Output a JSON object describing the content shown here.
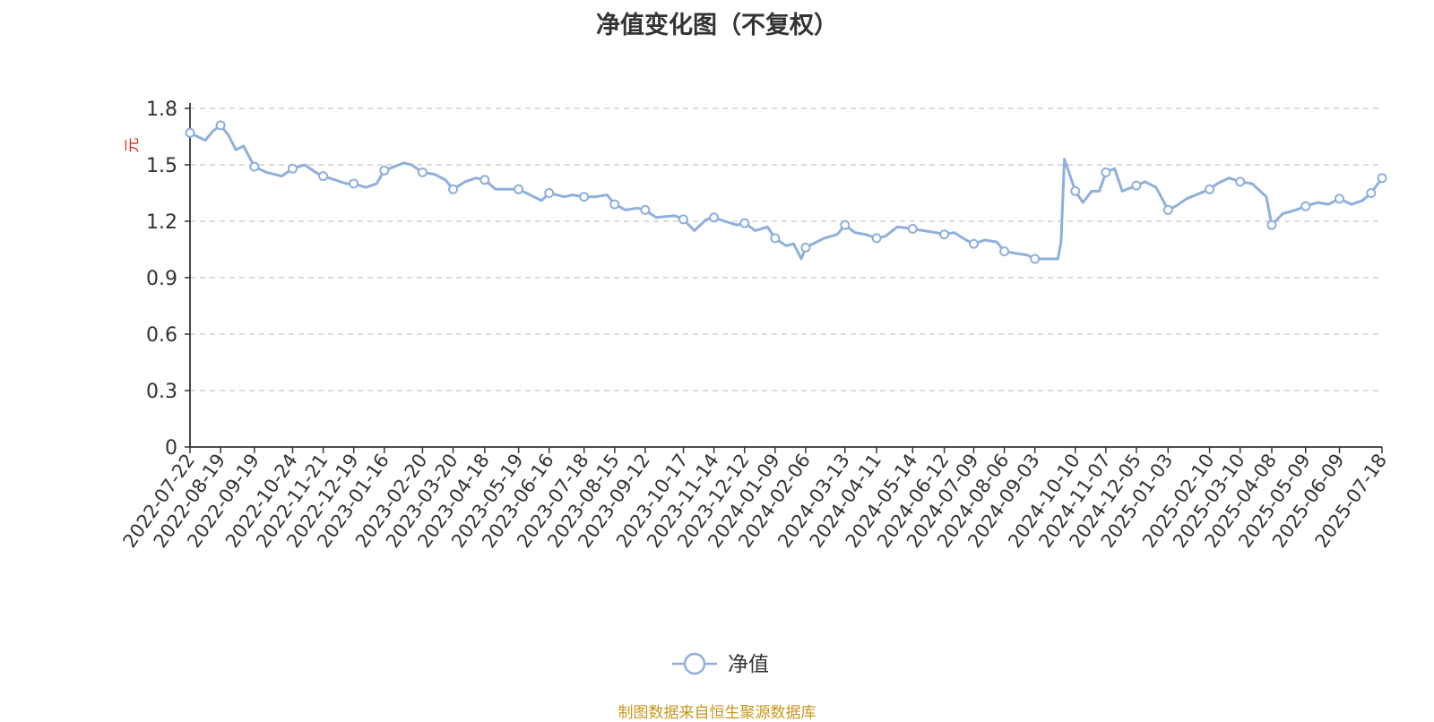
{
  "chart_data": {
    "type": "line",
    "title": "净值变化图（不复权）",
    "ylabel": "元",
    "ylim": [
      0,
      1.8
    ],
    "yticks": [
      "0",
      "0.3",
      "0.6",
      "0.9",
      "1.2",
      "1.5",
      "1.8"
    ],
    "grid": true,
    "legend_position": "bottom-center",
    "colors": {
      "series": "#8fafdc",
      "grid": "#c8c8c8",
      "ylabel": "#e8211c",
      "source": "#c8961e"
    },
    "x_tick_labels": [
      "2022-07-22",
      "2022-08-19",
      "2022-09-19",
      "2022-10-24",
      "2022-11-21",
      "2022-12-19",
      "2023-01-16",
      "2023-02-20",
      "2023-03-20",
      "2023-04-18",
      "2023-05-19",
      "2023-06-16",
      "2023-07-18",
      "2023-08-15",
      "2023-09-12",
      "2023-10-17",
      "2023-11-14",
      "2023-12-12",
      "2024-01-09",
      "2024-02-06",
      "2024-03-13",
      "2024-04-11",
      "2024-05-14",
      "2024-06-12",
      "2024-07-09",
      "2024-08-06",
      "2024-09-03",
      "2024-10-10",
      "2024-11-07",
      "2024-12-05",
      "2025-01-03",
      "2025-02-10",
      "2025-03-10",
      "2025-04-08",
      "2025-05-09",
      "2025-06-09",
      "2025-07-18"
    ],
    "series": [
      {
        "name": "净值",
        "x": [
          "2022-07-22",
          "2022-07-29",
          "2022-08-05",
          "2022-08-12",
          "2022-08-19",
          "2022-08-26",
          "2022-09-02",
          "2022-09-09",
          "2022-09-19",
          "2022-09-30",
          "2022-10-14",
          "2022-10-24",
          "2022-11-04",
          "2022-11-14",
          "2022-11-21",
          "2022-12-02",
          "2022-12-12",
          "2022-12-19",
          "2022-12-30",
          "2023-01-09",
          "2023-01-16",
          "2023-02-03",
          "2023-02-10",
          "2023-02-20",
          "2023-03-03",
          "2023-03-13",
          "2023-03-20",
          "2023-03-31",
          "2023-04-10",
          "2023-04-18",
          "2023-04-28",
          "2023-05-12",
          "2023-05-19",
          "2023-06-02",
          "2023-06-09",
          "2023-06-16",
          "2023-06-30",
          "2023-07-07",
          "2023-07-18",
          "2023-07-28",
          "2023-08-08",
          "2023-08-15",
          "2023-08-25",
          "2023-09-05",
          "2023-09-12",
          "2023-09-22",
          "2023-10-09",
          "2023-10-17",
          "2023-10-27",
          "2023-11-07",
          "2023-11-14",
          "2023-11-24",
          "2023-12-05",
          "2023-12-12",
          "2023-12-22",
          "2024-01-02",
          "2024-01-09",
          "2024-01-19",
          "2024-01-26",
          "2024-02-02",
          "2024-02-06",
          "2024-02-23",
          "2024-03-06",
          "2024-03-13",
          "2024-03-22",
          "2024-04-01",
          "2024-04-11",
          "2024-04-19",
          "2024-04-30",
          "2024-05-14",
          "2024-05-24",
          "2024-06-04",
          "2024-06-12",
          "2024-06-21",
          "2024-07-02",
          "2024-07-09",
          "2024-07-19",
          "2024-07-30",
          "2024-08-06",
          "2024-08-16",
          "2024-08-27",
          "2024-09-03",
          "2024-09-13",
          "2024-09-24",
          "2024-09-27",
          "2024-09-30",
          "2024-10-10",
          "2024-10-17",
          "2024-10-25",
          "2024-11-01",
          "2024-11-07",
          "2024-11-15",
          "2024-11-22",
          "2024-12-05",
          "2024-12-13",
          "2024-12-23",
          "2025-01-03",
          "2025-01-10",
          "2025-01-20",
          "2025-02-10",
          "2025-02-17",
          "2025-02-28",
          "2025-03-10",
          "2025-03-21",
          "2025-04-03",
          "2025-04-08",
          "2025-04-18",
          "2025-04-30",
          "2025-05-09",
          "2025-05-20",
          "2025-05-30",
          "2025-06-09",
          "2025-06-20",
          "2025-06-30",
          "2025-07-08",
          "2025-07-18"
        ],
        "values": [
          1.67,
          1.65,
          1.63,
          1.68,
          1.71,
          1.66,
          1.58,
          1.6,
          1.49,
          1.46,
          1.44,
          1.48,
          1.5,
          1.46,
          1.44,
          1.42,
          1.4,
          1.4,
          1.38,
          1.4,
          1.47,
          1.51,
          1.5,
          1.46,
          1.45,
          1.42,
          1.37,
          1.41,
          1.43,
          1.42,
          1.37,
          1.37,
          1.37,
          1.33,
          1.31,
          1.35,
          1.33,
          1.34,
          1.33,
          1.33,
          1.34,
          1.29,
          1.26,
          1.27,
          1.26,
          1.22,
          1.23,
          1.21,
          1.15,
          1.21,
          1.22,
          1.2,
          1.18,
          1.19,
          1.15,
          1.17,
          1.11,
          1.07,
          1.08,
          1.0,
          1.06,
          1.11,
          1.13,
          1.18,
          1.14,
          1.13,
          1.11,
          1.12,
          1.17,
          1.16,
          1.15,
          1.14,
          1.13,
          1.14,
          1.1,
          1.08,
          1.1,
          1.09,
          1.04,
          1.03,
          1.02,
          1.0,
          1.0,
          1.0,
          1.09,
          1.53,
          1.36,
          1.3,
          1.36,
          1.36,
          1.46,
          1.48,
          1.36,
          1.39,
          1.41,
          1.38,
          1.26,
          1.28,
          1.32,
          1.37,
          1.4,
          1.43,
          1.41,
          1.4,
          1.33,
          1.18,
          1.24,
          1.26,
          1.28,
          1.3,
          1.29,
          1.32,
          1.29,
          1.31,
          1.35,
          1.43
        ],
        "marker_indices": [
          0,
          4,
          8,
          11,
          14,
          17,
          20,
          23,
          26,
          29,
          32,
          35,
          38,
          41,
          44,
          47,
          50,
          53,
          56,
          60,
          63,
          66,
          69,
          72,
          75,
          78,
          81,
          86,
          90,
          93,
          96,
          99,
          102,
          105,
          108,
          111,
          114,
          115
        ]
      }
    ]
  },
  "legend": {
    "label": "净值"
  },
  "source_text": "制图数据来自恒生聚源数据库"
}
